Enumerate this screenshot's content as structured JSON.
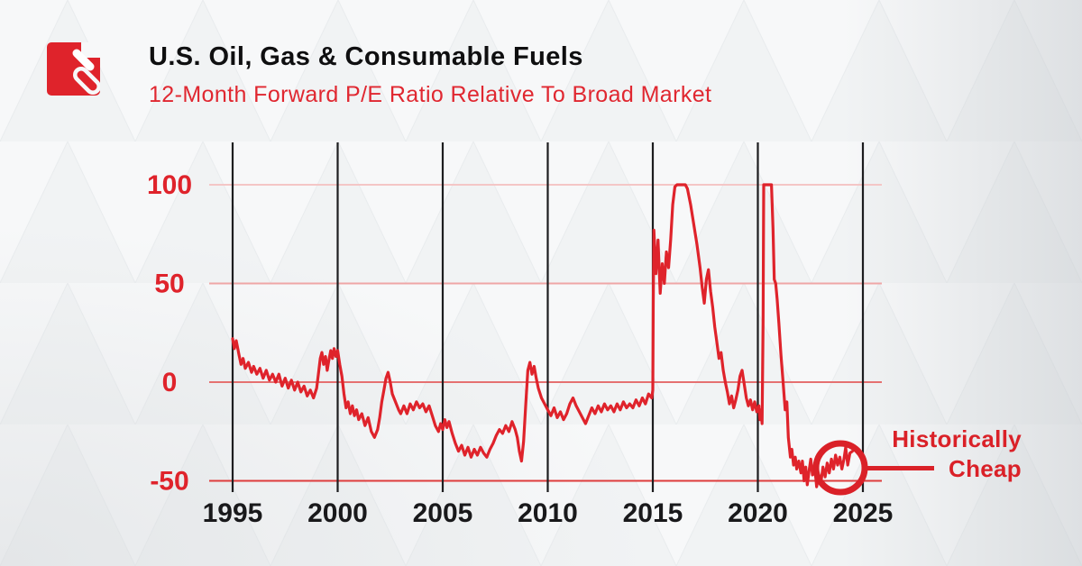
{
  "header": {
    "brand_logo": "arrow-slash-logo"
  },
  "colors": {
    "accent_red": "#df232b",
    "title_black": "#0f0f10",
    "tick_label_black": "#19191b",
    "y_label_red": "#df232b",
    "v_gridline": "#1d1d1f",
    "h_gridline_colors": [
      "#f4c6c6",
      "#efa6a6",
      "#e57171",
      "#de3c3c"
    ]
  },
  "annotation": {
    "line1": "Historically",
    "line2": "Cheap"
  },
  "chart_data": {
    "type": "line",
    "title": "U.S. Oil, Gas & Consumable Fuels",
    "subtitle": "12-Month Forward P/E Ratio Relative To Broad Market",
    "xlabel": "",
    "ylabel": "",
    "x_ticks": [
      1995,
      2000,
      2005,
      2010,
      2015,
      2020,
      2025
    ],
    "y_ticks": [
      100,
      50,
      0,
      -50
    ],
    "xlim": [
      1993.9,
      2025.9
    ],
    "ylim": [
      -55,
      120
    ],
    "grid": "on",
    "legend": "none",
    "annotation_label": "Historically Cheap",
    "annotation_target": {
      "x": 2023.9,
      "y": -43
    },
    "series": [
      {
        "name": "12-Month Forward P/E Ratio Relative To Broad Market",
        "points": [
          [
            1995.0,
            22
          ],
          [
            1995.08,
            17
          ],
          [
            1995.17,
            21
          ],
          [
            1995.3,
            14
          ],
          [
            1995.4,
            9
          ],
          [
            1995.5,
            12
          ],
          [
            1995.6,
            7
          ],
          [
            1995.75,
            10
          ],
          [
            1995.9,
            5
          ],
          [
            1996.0,
            8
          ],
          [
            1996.15,
            4
          ],
          [
            1996.3,
            7
          ],
          [
            1996.45,
            2
          ],
          [
            1996.6,
            6
          ],
          [
            1996.75,
            1
          ],
          [
            1996.9,
            4
          ],
          [
            1997.05,
            0
          ],
          [
            1997.2,
            4
          ],
          [
            1997.35,
            -2
          ],
          [
            1997.5,
            2
          ],
          [
            1997.65,
            -3
          ],
          [
            1997.8,
            1
          ],
          [
            1997.95,
            -4
          ],
          [
            1998.1,
            0
          ],
          [
            1998.25,
            -5
          ],
          [
            1998.4,
            -2
          ],
          [
            1998.55,
            -7
          ],
          [
            1998.7,
            -4
          ],
          [
            1998.85,
            -8
          ],
          [
            1999.0,
            -3
          ],
          [
            1999.08,
            4
          ],
          [
            1999.17,
            12
          ],
          [
            1999.25,
            15
          ],
          [
            1999.33,
            9
          ],
          [
            1999.42,
            13
          ],
          [
            1999.5,
            6
          ],
          [
            1999.58,
            11
          ],
          [
            1999.67,
            16
          ],
          [
            1999.75,
            12
          ],
          [
            1999.83,
            17
          ],
          [
            1999.92,
            13
          ],
          [
            2000.0,
            16
          ],
          [
            2000.1,
            9
          ],
          [
            2000.2,
            3
          ],
          [
            2000.3,
            -6
          ],
          [
            2000.4,
            -13
          ],
          [
            2000.5,
            -10
          ],
          [
            2000.6,
            -16
          ],
          [
            2000.7,
            -12
          ],
          [
            2000.8,
            -17
          ],
          [
            2000.9,
            -14
          ],
          [
            2001.0,
            -19
          ],
          [
            2001.15,
            -16
          ],
          [
            2001.3,
            -22
          ],
          [
            2001.45,
            -18
          ],
          [
            2001.6,
            -25
          ],
          [
            2001.75,
            -28
          ],
          [
            2001.9,
            -24
          ],
          [
            2002.0,
            -18
          ],
          [
            2002.1,
            -10
          ],
          [
            2002.2,
            -4
          ],
          [
            2002.3,
            2
          ],
          [
            2002.4,
            5
          ],
          [
            2002.5,
            0
          ],
          [
            2002.6,
            -6
          ],
          [
            2002.75,
            -10
          ],
          [
            2002.9,
            -14
          ],
          [
            2003.0,
            -16
          ],
          [
            2003.15,
            -12
          ],
          [
            2003.3,
            -16
          ],
          [
            2003.45,
            -11
          ],
          [
            2003.6,
            -14
          ],
          [
            2003.75,
            -10
          ],
          [
            2003.9,
            -13
          ],
          [
            2004.05,
            -11
          ],
          [
            2004.2,
            -15
          ],
          [
            2004.35,
            -12
          ],
          [
            2004.5,
            -17
          ],
          [
            2004.65,
            -22
          ],
          [
            2004.8,
            -25
          ],
          [
            2004.9,
            -21
          ],
          [
            2005.0,
            -24
          ],
          [
            2005.1,
            -19
          ],
          [
            2005.2,
            -23
          ],
          [
            2005.3,
            -20
          ],
          [
            2005.45,
            -26
          ],
          [
            2005.6,
            -31
          ],
          [
            2005.75,
            -35
          ],
          [
            2005.9,
            -32
          ],
          [
            2006.05,
            -37
          ],
          [
            2006.2,
            -33
          ],
          [
            2006.35,
            -38
          ],
          [
            2006.5,
            -34
          ],
          [
            2006.65,
            -37
          ],
          [
            2006.8,
            -33
          ],
          [
            2006.95,
            -36
          ],
          [
            2007.1,
            -38
          ],
          [
            2007.25,
            -34
          ],
          [
            2007.4,
            -31
          ],
          [
            2007.55,
            -27
          ],
          [
            2007.7,
            -24
          ],
          [
            2007.85,
            -26
          ],
          [
            2008.0,
            -22
          ],
          [
            2008.15,
            -25
          ],
          [
            2008.3,
            -20
          ],
          [
            2008.45,
            -24
          ],
          [
            2008.55,
            -28
          ],
          [
            2008.65,
            -35
          ],
          [
            2008.75,
            -40
          ],
          [
            2008.85,
            -30
          ],
          [
            2008.95,
            -12
          ],
          [
            2009.05,
            6
          ],
          [
            2009.15,
            10
          ],
          [
            2009.25,
            4
          ],
          [
            2009.35,
            8
          ],
          [
            2009.45,
            2
          ],
          [
            2009.55,
            -3
          ],
          [
            2009.7,
            -8
          ],
          [
            2009.85,
            -11
          ],
          [
            2010.0,
            -14
          ],
          [
            2010.15,
            -17
          ],
          [
            2010.3,
            -13
          ],
          [
            2010.45,
            -18
          ],
          [
            2010.6,
            -15
          ],
          [
            2010.75,
            -19
          ],
          [
            2010.9,
            -16
          ],
          [
            2011.05,
            -11
          ],
          [
            2011.2,
            -8
          ],
          [
            2011.35,
            -12
          ],
          [
            2011.5,
            -15
          ],
          [
            2011.65,
            -18
          ],
          [
            2011.8,
            -21
          ],
          [
            2011.95,
            -17
          ],
          [
            2012.1,
            -13
          ],
          [
            2012.25,
            -16
          ],
          [
            2012.4,
            -12
          ],
          [
            2012.55,
            -15
          ],
          [
            2012.7,
            -11
          ],
          [
            2012.85,
            -14
          ],
          [
            2013.0,
            -12
          ],
          [
            2013.15,
            -15
          ],
          [
            2013.3,
            -11
          ],
          [
            2013.45,
            -14
          ],
          [
            2013.6,
            -10
          ],
          [
            2013.75,
            -13
          ],
          [
            2013.9,
            -11
          ],
          [
            2014.05,
            -13
          ],
          [
            2014.2,
            -9
          ],
          [
            2014.35,
            -12
          ],
          [
            2014.5,
            -8
          ],
          [
            2014.65,
            -11
          ],
          [
            2014.8,
            -6
          ],
          [
            2014.95,
            -8
          ],
          [
            2015.0,
            -4
          ],
          [
            2015.02,
            40
          ],
          [
            2015.05,
            77
          ],
          [
            2015.15,
            55
          ],
          [
            2015.25,
            72
          ],
          [
            2015.35,
            45
          ],
          [
            2015.45,
            60
          ],
          [
            2015.55,
            50
          ],
          [
            2015.65,
            66
          ],
          [
            2015.75,
            58
          ],
          [
            2015.85,
            72
          ],
          [
            2015.95,
            90
          ],
          [
            2016.05,
            99
          ],
          [
            2016.15,
            100
          ],
          [
            2016.55,
            100
          ],
          [
            2016.65,
            98
          ],
          [
            2016.8,
            90
          ],
          [
            2016.95,
            80
          ],
          [
            2017.1,
            70
          ],
          [
            2017.25,
            58
          ],
          [
            2017.35,
            48
          ],
          [
            2017.45,
            40
          ],
          [
            2017.55,
            52
          ],
          [
            2017.65,
            57
          ],
          [
            2017.75,
            46
          ],
          [
            2017.85,
            38
          ],
          [
            2017.95,
            28
          ],
          [
            2018.05,
            20
          ],
          [
            2018.15,
            12
          ],
          [
            2018.25,
            15
          ],
          [
            2018.35,
            6
          ],
          [
            2018.45,
            0
          ],
          [
            2018.55,
            -5
          ],
          [
            2018.65,
            -11
          ],
          [
            2018.75,
            -7
          ],
          [
            2018.85,
            -13
          ],
          [
            2018.95,
            -9
          ],
          [
            2019.05,
            -4
          ],
          [
            2019.15,
            3
          ],
          [
            2019.25,
            6
          ],
          [
            2019.35,
            -1
          ],
          [
            2019.45,
            -8
          ],
          [
            2019.55,
            -12
          ],
          [
            2019.65,
            -9
          ],
          [
            2019.75,
            -14
          ],
          [
            2019.85,
            -10
          ],
          [
            2019.95,
            -15
          ],
          [
            2020.05,
            -12
          ],
          [
            2020.1,
            -19
          ],
          [
            2020.15,
            -14
          ],
          [
            2020.2,
            -21
          ],
          [
            2020.25,
            30
          ],
          [
            2020.28,
            100
          ],
          [
            2020.65,
            100
          ],
          [
            2020.72,
            78
          ],
          [
            2020.78,
            52
          ],
          [
            2020.85,
            50
          ],
          [
            2020.92,
            42
          ],
          [
            2021.0,
            30
          ],
          [
            2021.1,
            14
          ],
          [
            2021.2,
            0
          ],
          [
            2021.3,
            -14
          ],
          [
            2021.38,
            -10
          ],
          [
            2021.45,
            -28
          ],
          [
            2021.55,
            -38
          ],
          [
            2021.62,
            -34
          ],
          [
            2021.7,
            -42
          ],
          [
            2021.78,
            -38
          ],
          [
            2021.85,
            -44
          ],
          [
            2021.95,
            -40
          ],
          [
            2022.05,
            -46
          ],
          [
            2022.12,
            -40
          ],
          [
            2022.2,
            -50
          ],
          [
            2022.28,
            -43
          ],
          [
            2022.35,
            -52
          ],
          [
            2022.45,
            -44
          ],
          [
            2022.52,
            -39
          ],
          [
            2022.6,
            -47
          ],
          [
            2022.7,
            -42
          ],
          [
            2022.8,
            -53
          ],
          [
            2022.9,
            -47
          ],
          [
            2023.0,
            -51
          ],
          [
            2023.1,
            -43
          ],
          [
            2023.2,
            -48
          ],
          [
            2023.3,
            -41
          ],
          [
            2023.4,
            -46
          ],
          [
            2023.5,
            -39
          ],
          [
            2023.6,
            -44
          ],
          [
            2023.7,
            -37
          ],
          [
            2023.8,
            -42
          ],
          [
            2023.9,
            -38
          ],
          [
            2024.0,
            -44
          ],
          [
            2024.1,
            -39
          ],
          [
            2024.18,
            -33
          ],
          [
            2024.28,
            -42
          ],
          [
            2024.38,
            -36
          ],
          [
            2024.5,
            -35
          ]
        ]
      }
    ]
  }
}
